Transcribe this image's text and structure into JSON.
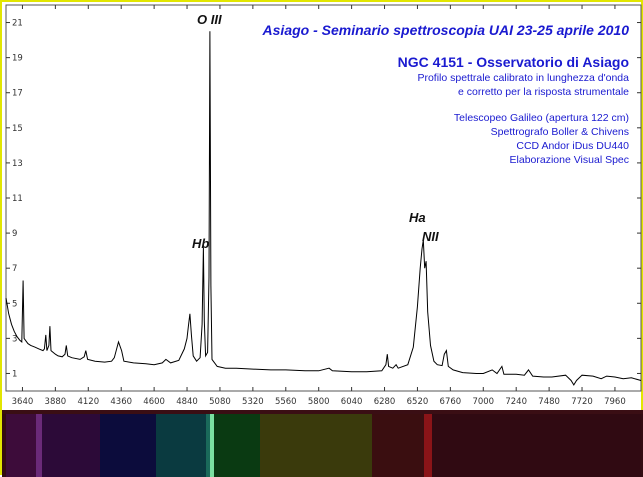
{
  "header": {
    "title": "Asiago - Seminario spettroscopia UAI  23-25 aprile 2010",
    "subtitle": "NGC 4151 - Osservatorio di Asiago",
    "description": [
      "Profilo spettrale calibrato in lunghezza d'onda",
      "e corretto per la risposta strumentale"
    ],
    "specs": [
      "Telescopeo Galileo (apertura 122 cm)",
      "Spettrografo Boller & Chivens",
      "CCD Andor iDus DU440",
      "Elaborazione Visual Spec"
    ]
  },
  "colors": {
    "title": "#1a1ad0",
    "frame": "#e2e600",
    "spectrum_line": "#000000",
    "strip_background": "#3a0e14"
  },
  "chart_data": {
    "type": "line",
    "title": "",
    "xlabel": "",
    "ylabel": "",
    "xlim": [
      3520,
      8150
    ],
    "ylim": [
      0,
      22
    ],
    "x_ticks": [
      3640,
      3880,
      4120,
      4360,
      4600,
      4840,
      5080,
      5320,
      5560,
      5800,
      6040,
      6280,
      6520,
      6760,
      7000,
      7240,
      7480,
      7720,
      7960
    ],
    "y_ticks": [
      1,
      3,
      5,
      7,
      9,
      11,
      13,
      15,
      17,
      19,
      21
    ],
    "grid": false,
    "annotations": [
      {
        "text": "O III",
        "x": 5007
      },
      {
        "text": "Hb",
        "x": 4861
      },
      {
        "text": "Ha",
        "x": 6563
      },
      {
        "text": "NII",
        "x": 6583
      }
    ],
    "series": [
      {
        "values": [
          [
            3520,
            5.3
          ],
          [
            3540,
            4.4
          ],
          [
            3560,
            3.8
          ],
          [
            3580,
            3.4
          ],
          [
            3600,
            3.1
          ],
          [
            3620,
            2.9
          ],
          [
            3635,
            2.8
          ],
          [
            3645,
            6.3
          ],
          [
            3652,
            3.0
          ],
          [
            3680,
            2.7
          ],
          [
            3700,
            2.6
          ],
          [
            3730,
            2.5
          ],
          [
            3760,
            2.4
          ],
          [
            3790,
            2.3
          ],
          [
            3800,
            2.4
          ],
          [
            3810,
            3.2
          ],
          [
            3818,
            2.3
          ],
          [
            3833,
            2.6
          ],
          [
            3840,
            3.7
          ],
          [
            3848,
            2.3
          ],
          [
            3880,
            2.1
          ],
          [
            3900,
            2.0
          ],
          [
            3930,
            1.95
          ],
          [
            3950,
            2.1
          ],
          [
            3960,
            2.6
          ],
          [
            3970,
            2.0
          ],
          [
            4000,
            1.9
          ],
          [
            4060,
            1.8
          ],
          [
            4090,
            1.95
          ],
          [
            4102,
            2.3
          ],
          [
            4115,
            1.8
          ],
          [
            4170,
            1.7
          ],
          [
            4240,
            1.65
          ],
          [
            4290,
            1.7
          ],
          [
            4310,
            1.9
          ],
          [
            4340,
            2.8
          ],
          [
            4363,
            2.3
          ],
          [
            4380,
            1.7
          ],
          [
            4450,
            1.6
          ],
          [
            4540,
            1.55
          ],
          [
            4600,
            1.5
          ],
          [
            4660,
            1.6
          ],
          [
            4686,
            1.8
          ],
          [
            4720,
            1.6
          ],
          [
            4780,
            1.75
          ],
          [
            4820,
            2.4
          ],
          [
            4840,
            3.0
          ],
          [
            4850,
            3.7
          ],
          [
            4861,
            4.4
          ],
          [
            4872,
            3.2
          ],
          [
            4885,
            2.0
          ],
          [
            4910,
            1.7
          ],
          [
            4935,
            1.9
          ],
          [
            4950,
            3.8
          ],
          [
            4959,
            8.2
          ],
          [
            4966,
            4.0
          ],
          [
            4975,
            2.0
          ],
          [
            4990,
            2.2
          ],
          [
            5000,
            6.5
          ],
          [
            5007,
            20.5
          ],
          [
            5014,
            6.0
          ],
          [
            5022,
            1.8
          ],
          [
            5060,
            1.4
          ],
          [
            5120,
            1.3
          ],
          [
            5200,
            1.3
          ],
          [
            5320,
            1.25
          ],
          [
            5450,
            1.2
          ],
          [
            5560,
            1.2
          ],
          [
            5700,
            1.15
          ],
          [
            5800,
            1.15
          ],
          [
            5876,
            1.3
          ],
          [
            5900,
            1.15
          ],
          [
            6040,
            1.1
          ],
          [
            6150,
            1.1
          ],
          [
            6260,
            1.15
          ],
          [
            6290,
            1.5
          ],
          [
            6300,
            2.1
          ],
          [
            6310,
            1.4
          ],
          [
            6340,
            1.3
          ],
          [
            6364,
            1.5
          ],
          [
            6380,
            1.3
          ],
          [
            6450,
            1.5
          ],
          [
            6490,
            2.5
          ],
          [
            6520,
            4.8
          ],
          [
            6540,
            7.0
          ],
          [
            6553,
            8.1
          ],
          [
            6563,
            8.6
          ],
          [
            6573,
            7.0
          ],
          [
            6583,
            7.4
          ],
          [
            6595,
            4.5
          ],
          [
            6615,
            2.6
          ],
          [
            6640,
            1.7
          ],
          [
            6665,
            1.5
          ],
          [
            6700,
            1.45
          ],
          [
            6716,
            2.1
          ],
          [
            6731,
            2.3
          ],
          [
            6745,
            1.4
          ],
          [
            6780,
            1.2
          ],
          [
            6850,
            1.05
          ],
          [
            6950,
            1.0
          ],
          [
            7000,
            1.0
          ],
          [
            7065,
            1.2
          ],
          [
            7100,
            1.0
          ],
          [
            7136,
            1.4
          ],
          [
            7150,
            0.95
          ],
          [
            7240,
            0.95
          ],
          [
            7300,
            0.9
          ],
          [
            7330,
            1.2
          ],
          [
            7360,
            0.85
          ],
          [
            7440,
            0.8
          ],
          [
            7500,
            0.8
          ],
          [
            7600,
            0.9
          ],
          [
            7640,
            0.6
          ],
          [
            7660,
            0.35
          ],
          [
            7680,
            0.6
          ],
          [
            7720,
            0.9
          ],
          [
            7800,
            0.85
          ],
          [
            7860,
            0.7
          ],
          [
            7900,
            0.85
          ],
          [
            7960,
            0.8
          ],
          [
            8020,
            0.7
          ],
          [
            8080,
            0.75
          ],
          [
            8150,
            0.6
          ]
        ]
      }
    ]
  }
}
